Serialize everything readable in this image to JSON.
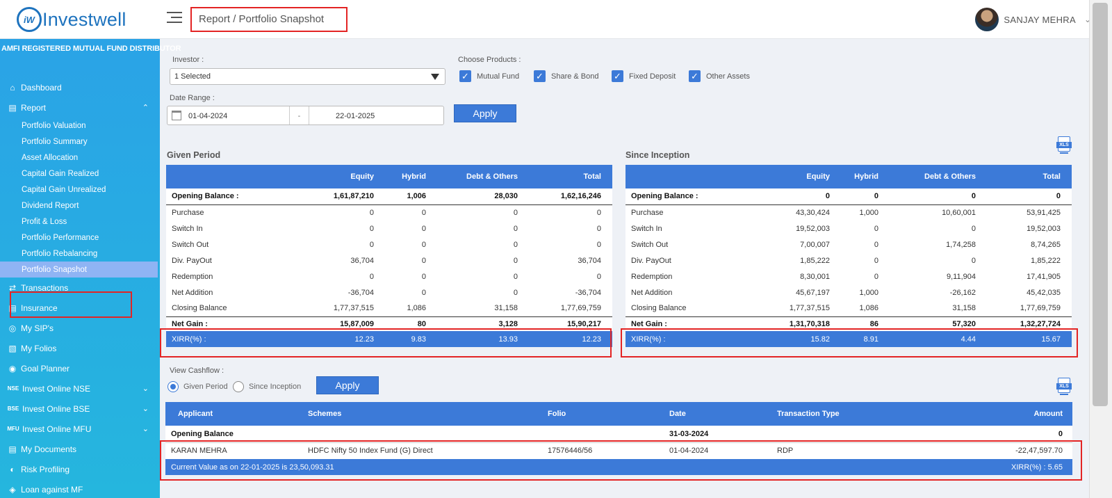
{
  "header": {
    "logo_mark": "iW",
    "logo_text": "Investwell",
    "breadcrumb": "Report / Portfolio Snapshot",
    "user_name": "SANJAY MEHRA"
  },
  "sidebar": {
    "distributor": "AMFI REGISTERED MUTUAL FUND DISTRIBUTOR",
    "items": [
      {
        "label": "Dashboard",
        "icon": "home-icon"
      },
      {
        "label": "Report",
        "icon": "report-icon"
      },
      {
        "label": "Transactions",
        "icon": "arrows-icon"
      },
      {
        "label": "Insurance",
        "icon": "document-icon"
      },
      {
        "label": "My SIP's",
        "icon": "sip-icon"
      },
      {
        "label": "My Folios",
        "icon": "folio-icon"
      },
      {
        "label": "Goal Planner",
        "icon": "goal-icon"
      },
      {
        "label": "Invest Online NSE",
        "icon_text": "NSE"
      },
      {
        "label": "Invest Online BSE",
        "icon_text": "BSE"
      },
      {
        "label": "Invest Online MFU",
        "icon_text": "MFU"
      },
      {
        "label": "My Documents",
        "icon": "documents-icon"
      },
      {
        "label": "Risk Profiling",
        "icon": "gauge-icon"
      },
      {
        "label": "Loan against MF",
        "icon": "loan-icon"
      }
    ],
    "report_sub": [
      "Portfolio Valuation",
      "Portfolio Summary",
      "Asset Allocation",
      "Capital Gain Realized",
      "Capital Gain Unrealized",
      "Dividend Report",
      "Profit & Loss",
      "Portfolio Performance",
      "Portfolio Rebalancing",
      "Portfolio Snapshot"
    ]
  },
  "filters": {
    "investor_label": "Investor :",
    "investor_value": "1 Selected",
    "products_label": "Choose Products :",
    "products": [
      "Mutual Fund",
      "Share & Bond",
      "Fixed Deposit",
      "Other Assets"
    ],
    "date_range_label": "Date Range :",
    "date_from": "01-04-2024",
    "date_sep": "-",
    "date_to": "22-01-2025",
    "apply": "Apply"
  },
  "given_period": {
    "title": "Given Period",
    "columns": [
      "",
      "Equity",
      "Hybrid",
      "Debt & Others",
      "Total"
    ],
    "rows": [
      [
        "Opening Balance :",
        "1,61,87,210",
        "1,006",
        "28,030",
        "1,62,16,246"
      ],
      [
        "Purchase",
        "0",
        "0",
        "0",
        "0"
      ],
      [
        "Switch In",
        "0",
        "0",
        "0",
        "0"
      ],
      [
        "Switch Out",
        "0",
        "0",
        "0",
        "0"
      ],
      [
        "Div. PayOut",
        "36,704",
        "0",
        "0",
        "36,704"
      ],
      [
        "Redemption",
        "0",
        "0",
        "0",
        "0"
      ],
      [
        "Net Addition",
        "-36,704",
        "0",
        "0",
        "-36,704"
      ],
      [
        "Closing Balance",
        "1,77,37,515",
        "1,086",
        "31,158",
        "1,77,69,759"
      ],
      [
        "Net Gain :",
        "15,87,009",
        "80",
        "3,128",
        "15,90,217"
      ],
      [
        "XIRR(%) :",
        "12.23",
        "9.83",
        "13.93",
        "12.23"
      ]
    ]
  },
  "since_inception": {
    "title": "Since Inception",
    "columns": [
      "",
      "Equity",
      "Hybrid",
      "Debt & Others",
      "Total"
    ],
    "rows": [
      [
        "Opening Balance :",
        "0",
        "0",
        "0",
        "0"
      ],
      [
        "Purchase",
        "43,30,424",
        "1,000",
        "10,60,001",
        "53,91,425"
      ],
      [
        "Switch In",
        "19,52,003",
        "0",
        "0",
        "19,52,003"
      ],
      [
        "Switch Out",
        "7,00,007",
        "0",
        "1,74,258",
        "8,74,265"
      ],
      [
        "Div. PayOut",
        "1,85,222",
        "0",
        "0",
        "1,85,222"
      ],
      [
        "Redemption",
        "8,30,001",
        "0",
        "9,11,904",
        "17,41,905"
      ],
      [
        "Net Addition",
        "45,67,197",
        "1,000",
        "-26,162",
        "45,42,035"
      ],
      [
        "Closing Balance",
        "1,77,37,515",
        "1,086",
        "31,158",
        "1,77,69,759"
      ],
      [
        "Net Gain :",
        "1,31,70,318",
        "86",
        "57,320",
        "1,32,27,724"
      ],
      [
        "XIRR(%) :",
        "15.82",
        "8.91",
        "4.44",
        "15.67"
      ]
    ]
  },
  "cashflow": {
    "label": "View Cashflow :",
    "options": [
      "Given Period",
      "Since Inception"
    ],
    "apply": "Apply",
    "columns": [
      "Applicant",
      "Schemes",
      "Folio",
      "Date",
      "Transaction Type",
      "Amount"
    ],
    "opening": [
      "Opening Balance",
      "",
      "",
      "31-03-2024",
      "",
      "0"
    ],
    "rows": [
      [
        "KARAN MEHRA",
        "HDFC Nifty 50 Index Fund (G) Direct",
        "17576446/56",
        "01-04-2024",
        "RDP",
        "-22,47,597.70"
      ]
    ],
    "current_value": "Current Value as on 22-01-2025 is 23,50,093.31",
    "xirr": "XIRR(%) : 5.65"
  },
  "xls_label": "XLS"
}
